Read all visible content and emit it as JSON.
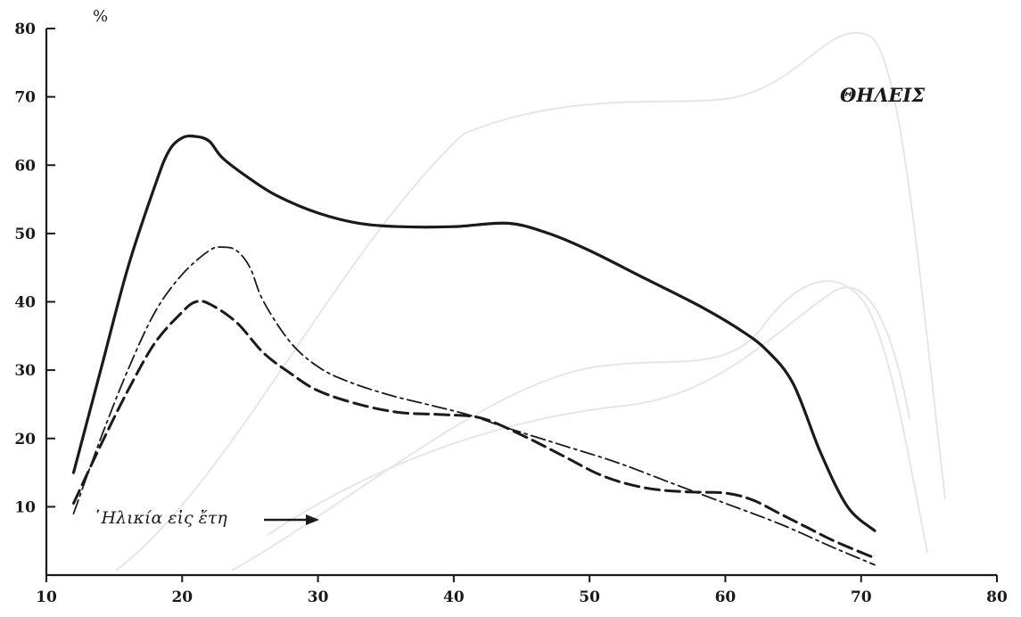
{
  "chart_data": {
    "type": "line",
    "title": "ΘΗΛΕΙΣ",
    "ylabel": "%",
    "annotation": "῾Ηλικία εἰς ἔτη",
    "xlim": [
      10,
      80
    ],
    "ylim": [
      0,
      80
    ],
    "x_ticks": [
      "10",
      "20",
      "30",
      "40",
      "50",
      "60",
      "70",
      "80"
    ],
    "y_ticks": [
      "10",
      "20",
      "30",
      "40",
      "50",
      "60",
      "70",
      "80"
    ],
    "grid": false,
    "series": [
      {
        "style": "solid",
        "x": [
          12,
          14,
          16,
          18,
          19,
          20,
          21,
          22,
          23,
          25,
          27,
          30,
          33,
          36,
          40,
          44,
          47,
          50,
          54,
          58,
          61,
          63,
          65,
          67,
          69,
          71
        ],
        "y": [
          15,
          30,
          45,
          57,
          62,
          64,
          64.2,
          63.5,
          61,
          58,
          55.5,
          53,
          51.5,
          51,
          51,
          51.5,
          50,
          47.5,
          43.5,
          39.5,
          36,
          33,
          28,
          18,
          10,
          6.5
        ]
      },
      {
        "style": "dash-dot",
        "x": [
          12,
          14,
          16,
          18,
          20,
          22,
          23,
          24,
          25,
          26,
          28,
          30,
          32,
          35,
          38,
          41,
          44,
          48,
          52,
          56,
          60,
          64,
          68,
          71
        ],
        "y": [
          9,
          20,
          30,
          38.5,
          44,
          47.5,
          48,
          47.5,
          45,
          40,
          34,
          30.5,
          28.5,
          26.5,
          25,
          23.5,
          21.5,
          19,
          16.5,
          13.5,
          10.5,
          7.5,
          4,
          1.5
        ]
      },
      {
        "style": "dashed",
        "x": [
          12,
          14,
          16,
          18,
          20,
          21,
          22,
          24,
          26,
          28,
          30,
          33,
          36,
          39,
          42,
          45,
          48,
          51,
          54,
          57,
          60,
          62,
          64,
          66,
          68,
          71
        ],
        "y": [
          10.5,
          19,
          27,
          34,
          38.5,
          40,
          39.7,
          37,
          32.5,
          29.5,
          27,
          25,
          23.8,
          23.5,
          23,
          20.5,
          17.5,
          14.5,
          12.8,
          12.2,
          12,
          11,
          9,
          7,
          5,
          2.5
        ]
      }
    ]
  }
}
